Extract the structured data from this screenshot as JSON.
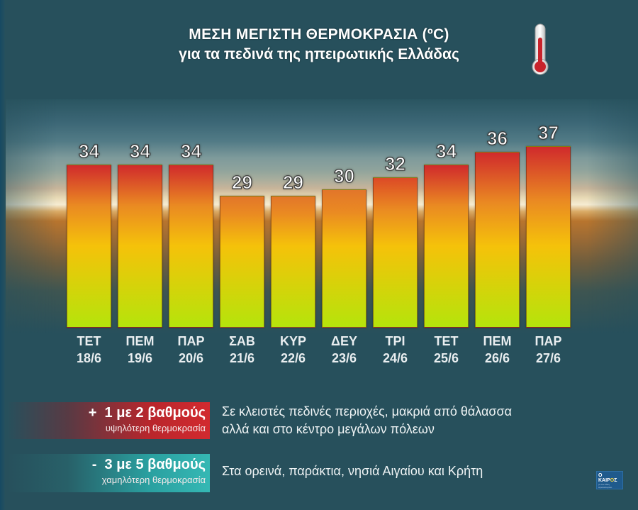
{
  "title": {
    "line1": "ΜΕΣΗ ΜΕΓΙΣΤΗ ΘΕΡΜΟΚΡΑΣΙΑ (ºC)",
    "line2": "για τα πεδινά της ηπειρωτικής Ελλάδας",
    "icon": "thermometer-icon"
  },
  "bars": [
    {
      "day": "ΤΕΤ",
      "date": "18/6",
      "value": "34"
    },
    {
      "day": "ΠΕΜ",
      "date": "19/6",
      "value": "34"
    },
    {
      "day": "ΠΑΡ",
      "date": "20/6",
      "value": "34"
    },
    {
      "day": "ΣΑΒ",
      "date": "21/6",
      "value": "29"
    },
    {
      "day": "ΚΥΡ",
      "date": "22/6",
      "value": "29"
    },
    {
      "day": "ΔΕΥ",
      "date": "23/6",
      "value": "30"
    },
    {
      "day": "ΤΡΙ",
      "date": "24/6",
      "value": "32"
    },
    {
      "day": "ΤΕΤ",
      "date": "25/6",
      "value": "34"
    },
    {
      "day": "ΠΕΜ",
      "date": "26/6",
      "value": "36"
    },
    {
      "day": "ΠΑΡ",
      "date": "27/6",
      "value": "37"
    }
  ],
  "legend": {
    "hot": {
      "main": "+  1 με 2 βαθμούς",
      "sub": "υψηλότερη θερμοκρασία",
      "desc_line1": "Σε κλειστές πεδινές περιοχές, μακριά από θάλασσα",
      "desc_line2": "αλλά και στο κέντρο μεγάλων πόλεων",
      "color": "#d22a2f"
    },
    "cold": {
      "main": "-  3 με 5 βαθμούς",
      "sub": "χαμηλότερη θερμοκρασία",
      "desc_line1": "Στα ορεινά, παράκτια, νησιά Αιγαίου και Κρήτη",
      "color": "#35b8b4"
    }
  },
  "logo": {
    "brand_prefix": "Ο ΚΑΙΡ",
    "brand_sun": "Ο",
    "brand_suffix": "Σ",
    "tagline": "με τον Σάκη Αρναούτογλου"
  },
  "colors": {
    "background": "#27505c",
    "bar_top_hot": "#d02a2c",
    "bar_mid": "#f5c20a",
    "bar_bottom": "#b5e40b"
  },
  "chart_data": {
    "type": "bar",
    "title": "ΜΕΣΗ ΜΕΓΙΣΤΗ ΘΕΡΜΟΚΡΑΣΙΑ (ºC) για τα πεδινά της ηπειρωτικής Ελλάδας",
    "categories": [
      "ΤΕΤ 18/6",
      "ΠΕΜ 19/6",
      "ΠΑΡ 20/6",
      "ΣΑΒ 21/6",
      "ΚΥΡ 22/6",
      "ΔΕΥ 23/6",
      "ΤΡΙ 24/6",
      "ΤΕΤ 25/6",
      "ΠΕΜ 26/6",
      "ΠΑΡ 27/6"
    ],
    "values": [
      34,
      34,
      34,
      29,
      29,
      30,
      32,
      34,
      36,
      37
    ],
    "xlabel": "",
    "ylabel": "ºC",
    "data_labels": true,
    "grid": false,
    "legend_position": "bottom",
    "annotations": [
      "+ 1 με 2 βαθμούς υψηλότερη θερμοκρασία: Σε κλειστές πεδινές περιοχές, μακριά από θάλασσα αλλά και στο κέντρο μεγάλων πόλεων",
      "- 3 με 5 βαθμούς χαμηλότερη θερμοκρασία: Στα ορεινά, παράκτια, νησιά Αιγαίου και Κρήτη"
    ]
  }
}
